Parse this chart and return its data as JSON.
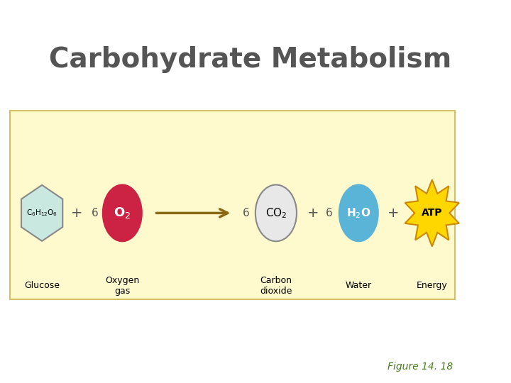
{
  "title": "Carbohydrate Metabolism",
  "title_color": "#555555",
  "title_fontsize": 28,
  "background_color": "#ffffff",
  "panel_bg_color": "#FFFACD",
  "panel_border_color": "#d4c060",
  "figure_border_color": "#cccccc",
  "figure_caption": "Figure 14. 18",
  "figure_caption_color": "#4a7a20",
  "figure_caption_fontsize": 10,
  "glucose_shape_color": "#c8e8e0",
  "glucose_shape_edge": "#888888",
  "glucose_label": "C$_6$H$_{12}$O$_6$",
  "glucose_sublabel": "Glucose",
  "o2_circle_color": "#cc2244",
  "o2_circle_edge": "#cc2244",
  "o2_label": "O$_2$",
  "o2_sublabel": "Oxygen\ngas",
  "co2_circle_color": "#e8e8e8",
  "co2_circle_edge": "#888888",
  "co2_label": "CO$_2$",
  "co2_sublabel": "Carbon\ndioxide",
  "h2o_circle_color": "#5ab4d8",
  "h2o_circle_edge": "#5ab4d8",
  "h2o_label": "H$_2$O",
  "h2o_sublabel": "Water",
  "atp_color": "#FFD700",
  "atp_edge_color": "#cc8800",
  "atp_label": "ATP",
  "atp_sublabel": "Energy",
  "arrow_color": "#8B6914",
  "plus_color": "#555555",
  "number_color": "#555555"
}
